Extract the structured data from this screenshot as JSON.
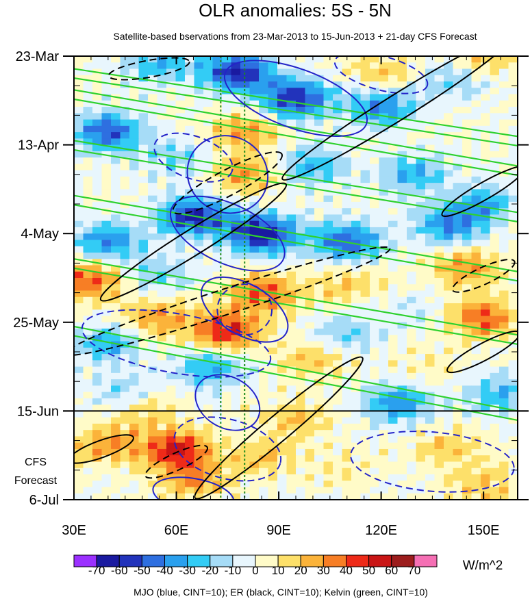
{
  "chart_data": {
    "type": "heatmap",
    "title": "OLR anomalies: 5S - 5N",
    "subtitle": "Satellite-based bservations from 23-Mar-2013 to 15-Jun-2013 + 21-day CFS Forecast",
    "x_range": [
      30,
      160
    ],
    "x_ticks": [
      {
        "value": 30,
        "label": "30E"
      },
      {
        "value": 60,
        "label": "60E"
      },
      {
        "value": 90,
        "label": "90E"
      },
      {
        "value": 120,
        "label": "120E"
      },
      {
        "value": 150,
        "label": "150E"
      }
    ],
    "y_range_days": [
      0,
      105
    ],
    "y_ticks": [
      {
        "day": 0,
        "label": "23-Mar"
      },
      {
        "day": 21,
        "label": "13-Apr"
      },
      {
        "day": 42,
        "label": "4-May"
      },
      {
        "day": 63,
        "label": "25-May"
      },
      {
        "day": 84,
        "label": "15-Jun"
      },
      {
        "day": 105,
        "label": "6-Jul"
      }
    ],
    "forecast_start_day": 84,
    "forecast_label": [
      "CFS",
      "Forecast"
    ],
    "reference_lons": [
      73,
      80
    ],
    "colorbar": {
      "unit": "W/m^2",
      "levels": [
        -70,
        -60,
        -50,
        -40,
        -30,
        -20,
        -10,
        0,
        10,
        20,
        30,
        40,
        50,
        60,
        70
      ],
      "colors": [
        "#9b30ff",
        "#1a1aa0",
        "#2233bb",
        "#2e6fe0",
        "#2aa0ee",
        "#33ccf5",
        "#a6dcf7",
        "#e8f6fd",
        "#fffbc8",
        "#fde06a",
        "#fbb33a",
        "#f77e25",
        "#ee2a18",
        "#c91515",
        "#9c1d1d",
        "#f56fb4"
      ]
    },
    "anomaly_features": [
      {
        "lon": 55,
        "day": 2,
        "value": -30
      },
      {
        "lon": 78,
        "day": 4,
        "value": -60
      },
      {
        "lon": 95,
        "day": 10,
        "value": -60
      },
      {
        "lon": 120,
        "day": 12,
        "value": -40
      },
      {
        "lon": 140,
        "day": 6,
        "value": -20
      },
      {
        "lon": 40,
        "day": 18,
        "value": -50
      },
      {
        "lon": 80,
        "day": 18,
        "value": 30
      },
      {
        "lon": 120,
        "day": 4,
        "value": 20
      },
      {
        "lon": 150,
        "day": 0,
        "value": 20
      },
      {
        "lon": 60,
        "day": 24,
        "value": -20
      },
      {
        "lon": 80,
        "day": 28,
        "value": 30
      },
      {
        "lon": 100,
        "day": 26,
        "value": -30
      },
      {
        "lon": 130,
        "day": 28,
        "value": -30
      },
      {
        "lon": 150,
        "day": 35,
        "value": -30
      },
      {
        "lon": 65,
        "day": 38,
        "value": -60
      },
      {
        "lon": 85,
        "day": 42,
        "value": -70
      },
      {
        "lon": 110,
        "day": 44,
        "value": -50
      },
      {
        "lon": 140,
        "day": 40,
        "value": -40
      },
      {
        "lon": 40,
        "day": 44,
        "value": -40
      },
      {
        "lon": 35,
        "day": 53,
        "value": 40
      },
      {
        "lon": 55,
        "day": 52,
        "value": -20
      },
      {
        "lon": 85,
        "day": 56,
        "value": 40
      },
      {
        "lon": 110,
        "day": 54,
        "value": 20
      },
      {
        "lon": 145,
        "day": 50,
        "value": 30
      },
      {
        "lon": 75,
        "day": 65,
        "value": 50
      },
      {
        "lon": 55,
        "day": 62,
        "value": 30
      },
      {
        "lon": 110,
        "day": 66,
        "value": -20
      },
      {
        "lon": 150,
        "day": 62,
        "value": 40
      },
      {
        "lon": 40,
        "day": 68,
        "value": -30
      },
      {
        "lon": 130,
        "day": 60,
        "value": -10
      },
      {
        "lon": 70,
        "day": 74,
        "value": -30
      },
      {
        "lon": 100,
        "day": 72,
        "value": 20
      },
      {
        "lon": 135,
        "day": 74,
        "value": 10
      },
      {
        "lon": 45,
        "day": 80,
        "value": -20
      },
      {
        "lon": 125,
        "day": 82,
        "value": -40
      },
      {
        "lon": 155,
        "day": 80,
        "value": -30
      },
      {
        "lon": 50,
        "day": 84,
        "value": 20
      },
      {
        "lon": 95,
        "day": 86,
        "value": 20
      },
      {
        "lon": 60,
        "day": 93,
        "value": 50
      },
      {
        "lon": 40,
        "day": 92,
        "value": 30
      },
      {
        "lon": 85,
        "day": 95,
        "value": 20
      },
      {
        "lon": 140,
        "day": 93,
        "value": 20
      },
      {
        "lon": 110,
        "day": 98,
        "value": 10
      },
      {
        "lon": 65,
        "day": 100,
        "value": 30
      },
      {
        "lon": 150,
        "day": 102,
        "value": 20
      }
    ],
    "contours": [
      {
        "kind": "mjo",
        "dashed": false,
        "lon": 75,
        "day": 28,
        "rx": 12,
        "ry": 9,
        "angle": 30
      },
      {
        "kind": "mjo",
        "dashed": false,
        "lon": 95,
        "day": 10,
        "rx": 22,
        "ry": 7,
        "angle": 20
      },
      {
        "kind": "mjo",
        "dashed": false,
        "lon": 75,
        "day": 42,
        "rx": 18,
        "ry": 7,
        "angle": 25
      },
      {
        "kind": "mjo",
        "dashed": false,
        "lon": 80,
        "day": 60,
        "rx": 14,
        "ry": 6,
        "angle": 30
      },
      {
        "kind": "mjo",
        "dashed": false,
        "lon": 75,
        "day": 82,
        "rx": 10,
        "ry": 6,
        "angle": 30
      },
      {
        "kind": "mjo",
        "dashed": false,
        "lon": 65,
        "day": 104,
        "rx": 12,
        "ry": 4,
        "angle": 10
      },
      {
        "kind": "mjo",
        "dashed": true,
        "lon": 120,
        "day": 4,
        "rx": 14,
        "ry": 4,
        "angle": 15
      },
      {
        "kind": "mjo",
        "dashed": true,
        "lon": 65,
        "day": 24,
        "rx": 12,
        "ry": 5,
        "angle": 20
      },
      {
        "kind": "mjo",
        "dashed": true,
        "lon": 60,
        "day": 68,
        "rx": 28,
        "ry": 7,
        "angle": 10
      },
      {
        "kind": "mjo",
        "dashed": true,
        "lon": 75,
        "day": 93,
        "rx": 16,
        "ry": 7,
        "angle": 15
      },
      {
        "kind": "mjo",
        "dashed": true,
        "lon": 135,
        "day": 96,
        "rx": 24,
        "ry": 7,
        "angle": 5
      },
      {
        "kind": "mjo",
        "dashed": true,
        "lon": 80,
        "day": 60,
        "rx": 8,
        "ry": 6,
        "angle": 0
      },
      {
        "kind": "er",
        "dashed": false,
        "lon": 65,
        "day": 44,
        "rx": 32,
        "ry": 3,
        "angle": -32
      },
      {
        "kind": "er",
        "dashed": false,
        "lon": 125,
        "day": 12,
        "rx": 40,
        "ry": 3,
        "angle": -32
      },
      {
        "kind": "er",
        "dashed": false,
        "lon": 90,
        "day": 88,
        "rx": 32,
        "ry": 3,
        "angle": -40
      },
      {
        "kind": "er",
        "dashed": false,
        "lon": 150,
        "day": 32,
        "rx": 14,
        "ry": 2,
        "angle": -30
      },
      {
        "kind": "er",
        "dashed": false,
        "lon": 150,
        "day": 70,
        "rx": 12,
        "ry": 2,
        "angle": -28
      },
      {
        "kind": "er",
        "dashed": false,
        "lon": 38,
        "day": 93,
        "rx": 10,
        "ry": 2,
        "angle": -20
      },
      {
        "kind": "er",
        "dashed": true,
        "lon": 75,
        "day": 30,
        "rx": 18,
        "ry": 3,
        "angle": -28
      },
      {
        "kind": "er",
        "dashed": true,
        "lon": 75,
        "day": 58,
        "rx": 50,
        "ry": 3,
        "angle": -18
      },
      {
        "kind": "er",
        "dashed": true,
        "lon": 60,
        "day": 96,
        "rx": 10,
        "ry": 2,
        "angle": -25
      },
      {
        "kind": "er",
        "dashed": true,
        "lon": 52,
        "day": 3,
        "rx": 12,
        "ry": 2,
        "angle": -10
      },
      {
        "kind": "er",
        "dashed": true,
        "lon": 150,
        "day": 52,
        "rx": 10,
        "ry": 2,
        "angle": -25
      }
    ],
    "kelvin_bands": [
      {
        "lon0": 30,
        "day0": 3,
        "lon1": 160,
        "day1": 19
      },
      {
        "lon0": 30,
        "day0": 8,
        "lon1": 160,
        "day1": 26
      },
      {
        "lon0": 30,
        "day0": 20,
        "lon1": 160,
        "day1": 37
      },
      {
        "lon0": 30,
        "day0": 33,
        "lon1": 160,
        "day1": 51
      },
      {
        "lon0": 30,
        "day0": 48,
        "lon1": 160,
        "day1": 66
      },
      {
        "lon0": 30,
        "day0": 64,
        "lon1": 160,
        "day1": 84
      }
    ],
    "legend": "MJO (blue, CINT=10); ER (black, CINT=10); Kelvin (green, CINT=10)"
  }
}
